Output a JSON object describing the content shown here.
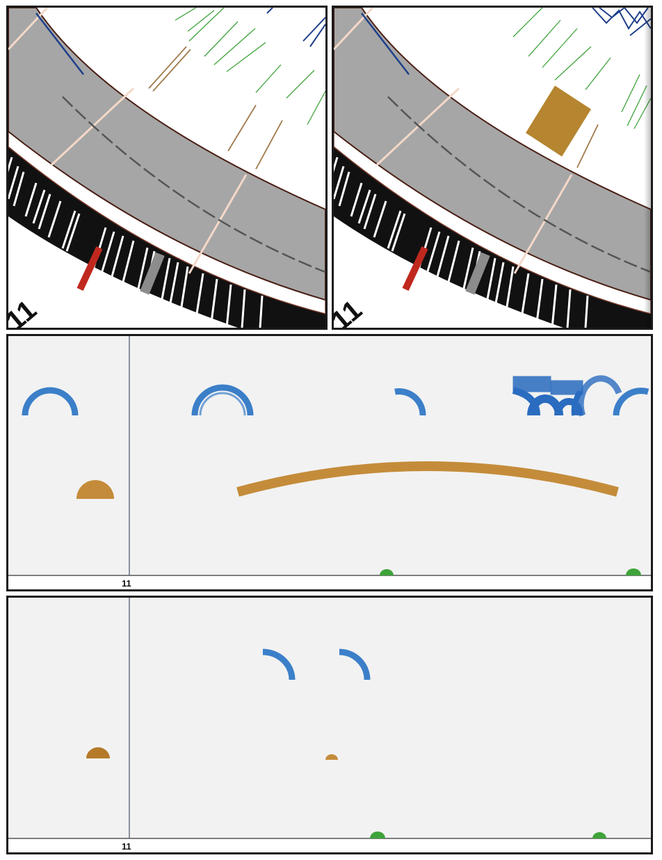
{
  "figure": {
    "panels": [
      {
        "id": "circos-top-left",
        "chromosome_label": "11"
      },
      {
        "id": "circos-top-right",
        "chromosome_label": "11"
      },
      {
        "id": "linear-middle",
        "axis_label": "11"
      },
      {
        "id": "linear-bottom",
        "axis_label": "11"
      }
    ],
    "colors": {
      "blue": "#3b7fc9",
      "dark_blue": "#1f4f9a",
      "gold": "#c48c3a",
      "green": "#3ea33a",
      "gray_ring": "#a6a6a6",
      "red_band": "#c0281e",
      "background_linear": "#f2f2f2"
    }
  }
}
